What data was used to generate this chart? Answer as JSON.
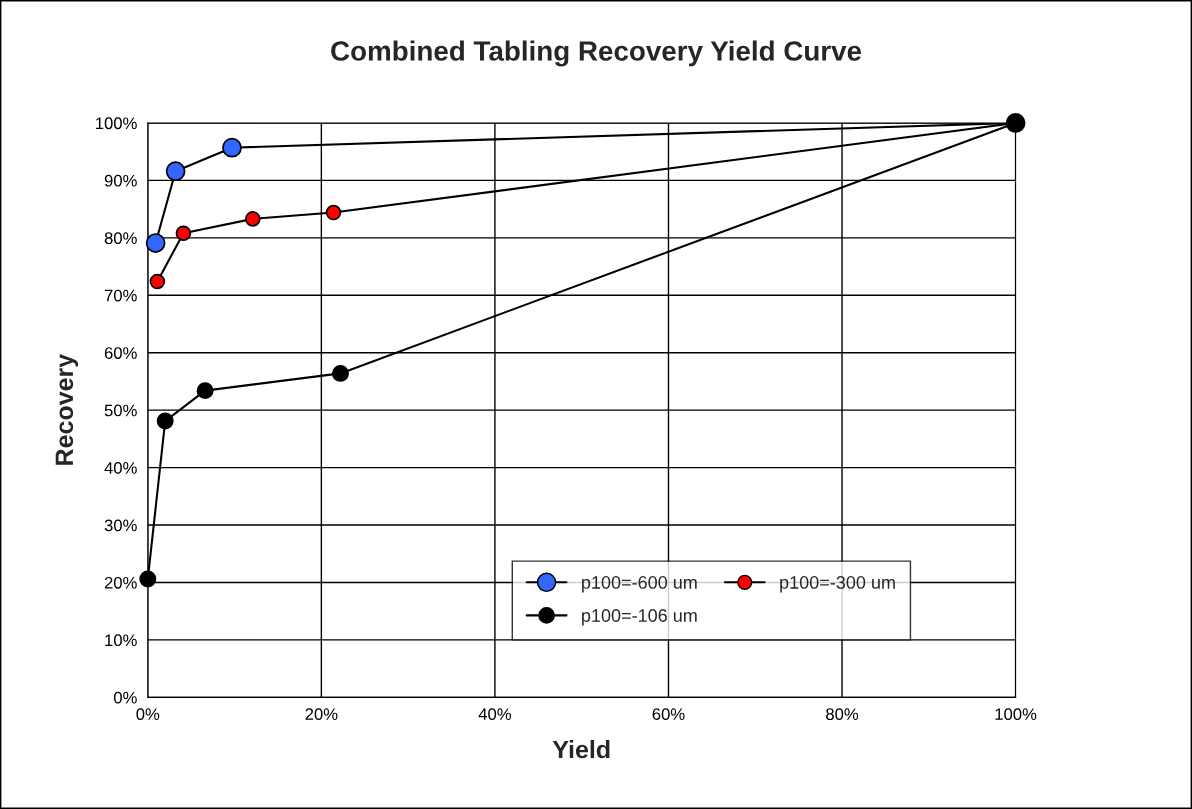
{
  "chart_data": {
    "type": "line",
    "title": "Combined Tabling Recovery Yield Curve",
    "xlabel": "Yield",
    "ylabel": "Recovery",
    "series": [
      {
        "name": "p100=-600 um",
        "color": "#3366ff",
        "x": [
          0.9,
          3.2,
          9.7,
          100
        ],
        "values": [
          79.1,
          91.6,
          95.7,
          100
        ]
      },
      {
        "name": "p100=-300 um",
        "color": "#ff0000",
        "x": [
          1.1,
          4.1,
          12.1,
          21.4,
          100
        ],
        "values": [
          72.4,
          80.8,
          83.3,
          84.4,
          100
        ]
      },
      {
        "name": "p100=-106 um",
        "color": "#000000",
        "x": [
          0,
          2.0,
          6.6,
          22.2,
          100
        ],
        "values": [
          20.6,
          48.1,
          53.4,
          56.4,
          100
        ]
      }
    ],
    "marker": "circle",
    "line_style": "solid",
    "grid": true,
    "legend": "bottom right",
    "xlim": [
      0,
      100
    ],
    "xticks": [
      {
        "value": 0,
        "label": "0%"
      },
      {
        "value": 20,
        "label": "20%"
      },
      {
        "value": 40,
        "label": "40%"
      },
      {
        "value": 60,
        "label": "60%"
      },
      {
        "value": 80,
        "label": "80%"
      },
      {
        "value": 100,
        "label": "100%"
      }
    ],
    "ylim": [
      0,
      100
    ],
    "yticks": [
      {
        "value": 0,
        "label": "0%"
      },
      {
        "value": 10,
        "label": "10%"
      },
      {
        "value": 20,
        "label": "20%"
      },
      {
        "value": 30,
        "label": "30%"
      },
      {
        "value": 40,
        "label": "40%"
      },
      {
        "value": 50,
        "label": "50%"
      },
      {
        "value": 60,
        "label": "60%"
      },
      {
        "value": 70,
        "label": "70%"
      },
      {
        "value": 80,
        "label": "80%"
      },
      {
        "value": 90,
        "label": "90%"
      },
      {
        "value": 100,
        "label": "100%"
      }
    ]
  }
}
